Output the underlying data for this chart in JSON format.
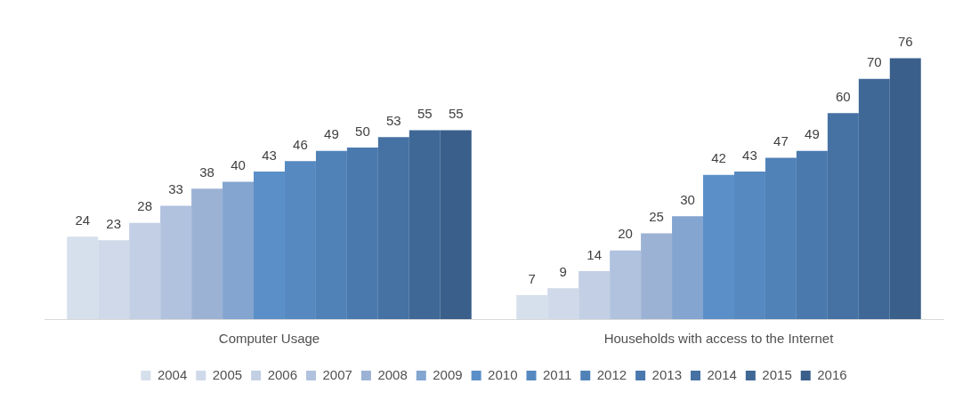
{
  "chart_data": {
    "type": "bar",
    "categories": [
      "Computer Usage",
      "Households with access to the Internet"
    ],
    "series": [
      {
        "name": "2004",
        "color": "#d6dfec",
        "values": [
          24,
          7
        ]
      },
      {
        "name": "2005",
        "color": "#cfd9e9",
        "values": [
          23,
          9
        ]
      },
      {
        "name": "2006",
        "color": "#c2cfe4",
        "values": [
          28,
          14
        ]
      },
      {
        "name": "2007",
        "color": "#b0c2de",
        "values": [
          33,
          20
        ]
      },
      {
        "name": "2008",
        "color": "#9cb2d5",
        "values": [
          38,
          25
        ]
      },
      {
        "name": "2009",
        "color": "#83a5d0",
        "values": [
          40,
          30
        ]
      },
      {
        "name": "2010",
        "color": "#5b8fc8",
        "values": [
          43,
          42
        ]
      },
      {
        "name": "2011",
        "color": "#5689c0",
        "values": [
          46,
          43
        ]
      },
      {
        "name": "2012",
        "color": "#5082b8",
        "values": [
          49,
          47
        ]
      },
      {
        "name": "2013",
        "color": "#4a79ae",
        "values": [
          50,
          49
        ]
      },
      {
        "name": "2014",
        "color": "#4571a3",
        "values": [
          53,
          60
        ]
      },
      {
        "name": "2015",
        "color": "#3f6896",
        "values": [
          55,
          70
        ]
      },
      {
        "name": "2016",
        "color": "#3a5f8a",
        "values": [
          55,
          76
        ]
      }
    ],
    "data_labels": true,
    "legend": "bottom",
    "grid": false
  }
}
